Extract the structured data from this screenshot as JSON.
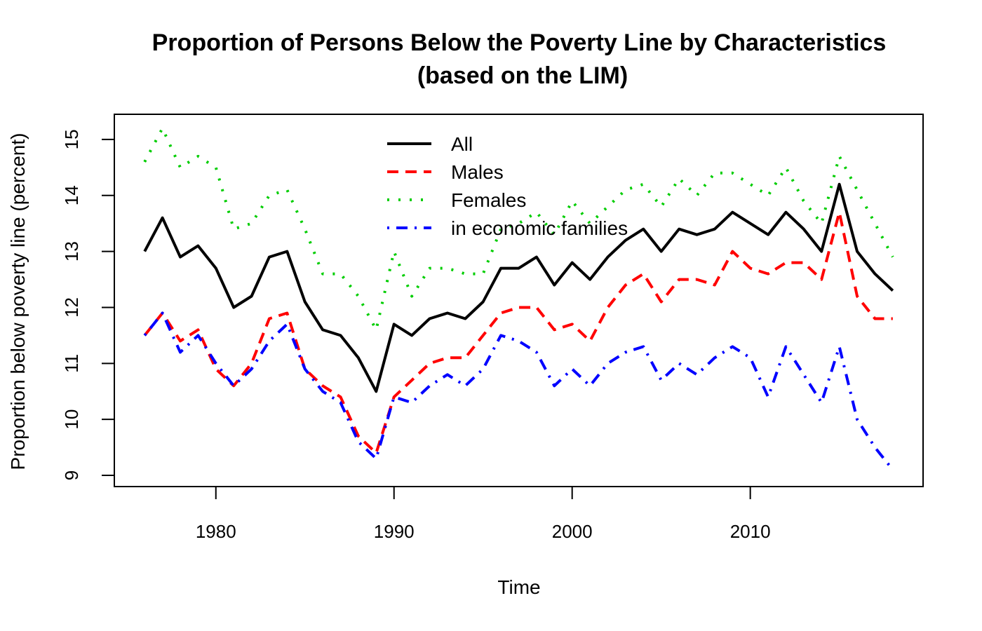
{
  "chart_data": {
    "type": "line",
    "title": "Proportion of Persons Below the Poverty Line by Characteristics",
    "subtitle": "(based on the LIM)",
    "xlabel": "Time",
    "ylabel": "Proportion below poverty line (percent)",
    "xlim": [
      1974.3,
      2019.7
    ],
    "ylim": [
      8.8,
      15.45
    ],
    "xticks": [
      1980,
      1990,
      2000,
      2010
    ],
    "yticks": [
      9,
      10,
      11,
      12,
      13,
      14,
      15
    ],
    "grid": false,
    "legend_position": "top-center",
    "x": [
      1976,
      1977,
      1978,
      1979,
      1980,
      1981,
      1982,
      1983,
      1984,
      1985,
      1986,
      1987,
      1988,
      1989,
      1990,
      1991,
      1992,
      1993,
      1994,
      1995,
      1996,
      1997,
      1998,
      1999,
      2000,
      2001,
      2002,
      2003,
      2004,
      2005,
      2006,
      2007,
      2008,
      2009,
      2010,
      2011,
      2012,
      2013,
      2014,
      2015,
      2016,
      2017,
      2018
    ],
    "series": [
      {
        "name": "All",
        "color": "#000000",
        "dash": "solid",
        "values": [
          13.0,
          13.6,
          12.9,
          13.1,
          12.7,
          12.0,
          12.2,
          12.9,
          13.0,
          12.1,
          11.6,
          11.5,
          11.1,
          10.5,
          11.7,
          11.5,
          11.8,
          11.9,
          11.8,
          12.1,
          12.7,
          12.7,
          12.9,
          12.4,
          12.8,
          12.5,
          12.9,
          13.2,
          13.4,
          13.0,
          13.4,
          13.3,
          13.4,
          13.7,
          13.5,
          13.3,
          13.7,
          13.4,
          13.0,
          14.2,
          13.0,
          12.6,
          12.3
        ]
      },
      {
        "name": "Males",
        "color": "#ff0000",
        "dash": "dashed",
        "values": [
          11.5,
          11.9,
          11.4,
          11.6,
          10.9,
          10.6,
          11.0,
          11.8,
          11.9,
          10.9,
          10.6,
          10.4,
          9.7,
          9.4,
          10.4,
          10.7,
          11.0,
          11.1,
          11.1,
          11.5,
          11.9,
          12.0,
          12.0,
          11.6,
          11.7,
          11.4,
          12.0,
          12.4,
          12.6,
          12.1,
          12.5,
          12.5,
          12.4,
          13.0,
          12.7,
          12.6,
          12.8,
          12.8,
          12.5,
          13.7,
          12.2,
          11.8,
          11.8
        ]
      },
      {
        "name": "Females",
        "color": "#00cd00",
        "dash": "dotted",
        "values": [
          14.6,
          15.2,
          14.5,
          14.7,
          14.5,
          13.4,
          13.5,
          14.0,
          14.1,
          13.4,
          12.6,
          12.6,
          12.2,
          11.6,
          13.0,
          12.2,
          12.7,
          12.7,
          12.6,
          12.6,
          13.4,
          13.5,
          13.7,
          13.3,
          13.9,
          13.5,
          13.8,
          14.1,
          14.2,
          13.8,
          14.3,
          14.0,
          14.4,
          14.4,
          14.2,
          14.0,
          14.5,
          13.9,
          13.5,
          14.7,
          14.1,
          13.5,
          12.9
        ]
      },
      {
        "name": "in economic families",
        "color": "#0000ff",
        "dash": "dotdash",
        "values": [
          11.5,
          11.9,
          11.2,
          11.5,
          11.0,
          10.6,
          10.9,
          11.4,
          11.7,
          10.9,
          10.5,
          10.3,
          9.6,
          9.3,
          10.4,
          10.3,
          10.6,
          10.8,
          10.6,
          10.9,
          11.5,
          11.4,
          11.2,
          10.6,
          10.9,
          10.6,
          11.0,
          11.2,
          11.3,
          10.7,
          11.0,
          10.8,
          11.1,
          11.3,
          11.1,
          10.4,
          11.3,
          10.8,
          10.3,
          11.3,
          10.0,
          9.5,
          9.1
        ]
      }
    ]
  }
}
